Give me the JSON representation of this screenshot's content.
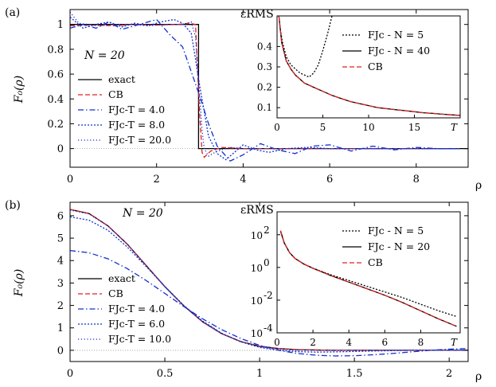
{
  "chart_data": [
    {
      "type": "line",
      "panel_label": "(a)",
      "xlabel": "ρ",
      "ylabel": "F₀(ρ)",
      "xlim": [
        0,
        9.2
      ],
      "ylim": [
        -0.15,
        1.12
      ],
      "xticks": [
        "0",
        "2",
        "4",
        "6",
        "8"
      ],
      "yticks": [
        "0",
        "0.2",
        "0.4",
        "0.6",
        "0.8",
        "1"
      ],
      "annotation": "N = 20",
      "legend_position": "center-left",
      "series": [
        {
          "name": "exact",
          "color": "#000000",
          "dash": "solid",
          "x": [
            0,
            2.97,
            2.97,
            3.0,
            9.2
          ],
          "y": [
            1,
            1,
            0,
            0,
            0
          ]
        },
        {
          "name": "CB",
          "color": "#e02020",
          "dash": "dashed",
          "x": [
            0,
            0.5,
            1.0,
            1.5,
            2.0,
            2.5,
            2.75,
            2.9,
            2.95,
            3.0,
            3.05,
            3.1,
            3.25,
            3.5,
            4.0,
            5.0,
            6.0,
            7.0,
            8.0,
            9.0
          ],
          "y": [
            0.99,
            0.995,
            0.99,
            1.0,
            0.995,
            1.0,
            1.01,
            1.0,
            0.6,
            0.25,
            -0.03,
            -0.07,
            -0.02,
            0.01,
            0.0,
            0.0,
            0.0,
            0.0,
            0.0,
            0.0
          ]
        },
        {
          "name": "FJc-T = 4.0",
          "color": "#1030d0",
          "dash": "dashdot",
          "x": [
            0,
            0.3,
            0.6,
            0.9,
            1.2,
            1.6,
            2.0,
            2.3,
            2.6,
            2.8,
            3.0,
            3.2,
            3.4,
            3.7,
            4.0,
            4.4,
            4.8,
            5.2,
            5.6,
            6.0,
            6.5,
            7.0,
            7.5,
            8.0,
            8.5,
            9.0
          ],
          "y": [
            0.97,
            1.0,
            0.97,
            1.02,
            0.96,
            1.0,
            1.04,
            0.92,
            0.82,
            0.62,
            0.42,
            0.2,
            0.02,
            -0.1,
            -0.05,
            0.04,
            -0.01,
            -0.04,
            0.02,
            0.03,
            -0.02,
            0.02,
            -0.01,
            0.01,
            0.0,
            0.0
          ]
        },
        {
          "name": "FJc-T = 8.0",
          "color": "#1030d0",
          "dash": "dotted",
          "x": [
            0,
            0.3,
            0.6,
            0.9,
            1.2,
            1.5,
            1.8,
            2.1,
            2.4,
            2.6,
            2.8,
            2.9,
            3.0,
            3.1,
            3.2,
            3.4,
            3.6,
            3.8,
            4.0,
            4.3,
            4.6,
            5.0,
            5.5,
            6.0,
            6.5,
            7.0,
            7.5,
            8.0,
            9.0
          ],
          "y": [
            1.06,
            0.97,
            1.0,
            1.02,
            0.98,
            1.01,
            0.99,
            1.02,
            1.04,
            1.01,
            0.93,
            0.72,
            0.5,
            0.3,
            0.1,
            -0.04,
            -0.09,
            -0.03,
            0.03,
            -0.01,
            -0.03,
            0.0,
            0.01,
            0.0,
            0.0,
            0.0,
            0.0,
            0.0,
            0.0
          ]
        },
        {
          "name": "FJc-T = 20.0",
          "color": "#1030d0",
          "dash": "dotted-sparse",
          "x": [
            0,
            0.2,
            0.4,
            0.7,
            1.0,
            1.4,
            1.8,
            2.2,
            2.6,
            2.8,
            2.9,
            2.95,
            3.0,
            3.05,
            3.1,
            3.2,
            3.4,
            3.7,
            4.0,
            5.0,
            6.0,
            7.0,
            8.0,
            9.0
          ],
          "y": [
            1.1,
            1.01,
            1.0,
            0.99,
            1.0,
            1.0,
            0.99,
            1.0,
            1.0,
            1.02,
            0.9,
            0.65,
            0.4,
            0.15,
            0.0,
            -0.06,
            -0.02,
            0.01,
            0.0,
            0.0,
            0.0,
            0.0,
            0.0,
            0.0
          ]
        }
      ],
      "inset": {
        "ylabel": "εRMS",
        "xlabel": "T",
        "xlim": [
          0,
          20
        ],
        "ylim": [
          0.05,
          0.55
        ],
        "xticks": [
          "0",
          "5",
          "10",
          "15"
        ],
        "yticks": [
          "0.1",
          "0.2",
          "0.3",
          "0.4"
        ],
        "legend_position": "top-right",
        "series": [
          {
            "name": "FJc - N = 5",
            "color": "#000000",
            "dash": "dotted",
            "x": [
              0.3,
              0.6,
              1.0,
              1.5,
              2.0,
              2.5,
              3.0,
              3.5,
              4.0,
              4.5,
              5.0,
              5.5,
              6.0
            ],
            "y": [
              0.5,
              0.42,
              0.35,
              0.31,
              0.29,
              0.27,
              0.26,
              0.25,
              0.27,
              0.31,
              0.38,
              0.46,
              0.55
            ]
          },
          {
            "name": "FJc - N = 40",
            "color": "#000000",
            "dash": "solid",
            "x": [
              0.2,
              0.5,
              1.0,
              1.5,
              2.0,
              2.5,
              3.0,
              3.5,
              4.0,
              5.0,
              6.0,
              7.0,
              8.0,
              9.0,
              10.0,
              11.0,
              12.0,
              13.0,
              14.0,
              15.0,
              16.0,
              17.0,
              18.0,
              19.0,
              20.0
            ],
            "y": [
              0.55,
              0.42,
              0.33,
              0.29,
              0.26,
              0.24,
              0.22,
              0.21,
              0.2,
              0.18,
              0.16,
              0.145,
              0.13,
              0.12,
              0.11,
              0.1,
              0.095,
              0.09,
              0.085,
              0.08,
              0.075,
              0.072,
              0.068,
              0.065,
              0.062
            ]
          },
          {
            "name": "CB",
            "color": "#e02020",
            "dash": "dashed",
            "x": [
              0.2,
              0.5,
              1.0,
              1.5,
              2.0,
              2.5,
              3.0,
              3.5,
              4.0,
              5.0,
              6.0,
              7.0,
              8.0,
              9.0,
              10.0,
              11.0,
              12.0,
              13.0,
              14.0,
              15.0,
              16.0,
              17.0,
              18.0,
              19.0,
              20.0
            ],
            "y": [
              0.55,
              0.42,
              0.33,
              0.29,
              0.26,
              0.24,
              0.22,
              0.21,
              0.2,
              0.18,
              0.16,
              0.145,
              0.13,
              0.12,
              0.11,
              0.1,
              0.095,
              0.09,
              0.085,
              0.08,
              0.075,
              0.072,
              0.068,
              0.065,
              0.062
            ]
          }
        ]
      }
    },
    {
      "type": "line",
      "panel_label": "(b)",
      "xlabel": "ρ",
      "ylabel": "F₀(ρ)",
      "xlim": [
        0,
        2.1
      ],
      "ylim": [
        -0.5,
        6.6
      ],
      "xticks": [
        "0",
        "0.5",
        "1",
        "1.5",
        "2"
      ],
      "yticks": [
        "0",
        "1",
        "2",
        "3",
        "4",
        "5",
        "6"
      ],
      "annotation": "N = 20",
      "legend_position": "lower-left",
      "series": [
        {
          "name": "exact",
          "color": "#000000",
          "dash": "solid",
          "x": [
            0,
            0.1,
            0.2,
            0.3,
            0.4,
            0.5,
            0.6,
            0.7,
            0.8,
            0.9,
            1.0,
            1.1,
            1.2,
            1.4,
            1.6,
            1.8,
            2.0,
            2.1
          ],
          "y": [
            6.28,
            6.1,
            5.55,
            4.75,
            3.8,
            2.84,
            1.98,
            1.26,
            0.74,
            0.39,
            0.18,
            0.08,
            0.03,
            0.0,
            0.0,
            0.0,
            0.0,
            0.0
          ]
        },
        {
          "name": "CB",
          "color": "#e02020",
          "dash": "dashed",
          "x": [
            0,
            0.1,
            0.2,
            0.3,
            0.4,
            0.5,
            0.6,
            0.7,
            0.8,
            0.9,
            1.0,
            1.1,
            1.2,
            1.4,
            1.6,
            1.8,
            2.0,
            2.1
          ],
          "y": [
            6.28,
            6.1,
            5.55,
            4.75,
            3.8,
            2.84,
            1.98,
            1.26,
            0.74,
            0.39,
            0.18,
            0.08,
            0.03,
            0.0,
            0.0,
            0.0,
            0.0,
            0.0
          ]
        },
        {
          "name": "FJc-T = 4.0",
          "color": "#1030d0",
          "dash": "dashdot",
          "x": [
            0,
            0.1,
            0.2,
            0.3,
            0.4,
            0.5,
            0.6,
            0.7,
            0.8,
            0.9,
            1.0,
            1.1,
            1.2,
            1.3,
            1.4,
            1.5,
            1.6,
            1.7,
            1.8,
            1.9,
            2.0,
            2.1
          ],
          "y": [
            4.45,
            4.35,
            4.08,
            3.65,
            3.12,
            2.54,
            1.95,
            1.4,
            0.92,
            0.53,
            0.22,
            0.0,
            -0.14,
            -0.22,
            -0.25,
            -0.24,
            -0.2,
            -0.14,
            -0.07,
            0.0,
            0.05,
            0.08
          ]
        },
        {
          "name": "FJc-T = 6.0",
          "color": "#1030d0",
          "dash": "dotted",
          "x": [
            0,
            0.1,
            0.2,
            0.3,
            0.4,
            0.5,
            0.6,
            0.7,
            0.8,
            0.9,
            1.0,
            1.1,
            1.2,
            1.3,
            1.4,
            1.6,
            1.8,
            2.0,
            2.1
          ],
          "y": [
            5.95,
            5.8,
            5.35,
            4.62,
            3.75,
            2.85,
            2.0,
            1.3,
            0.76,
            0.38,
            0.13,
            0.0,
            -0.06,
            -0.08,
            -0.07,
            -0.03,
            0.0,
            0.01,
            0.01
          ]
        },
        {
          "name": "FJc-T = 10.0",
          "color": "#1030d0",
          "dash": "dotted-sparse",
          "x": [
            0,
            0.1,
            0.2,
            0.3,
            0.4,
            0.5,
            0.6,
            0.7,
            0.8,
            0.9,
            1.0,
            1.1,
            1.2,
            1.4,
            1.6,
            1.8,
            2.0,
            2.1
          ],
          "y": [
            6.25,
            6.08,
            5.54,
            4.74,
            3.79,
            2.84,
            1.98,
            1.27,
            0.74,
            0.38,
            0.16,
            0.05,
            0.0,
            -0.01,
            0.0,
            0.0,
            0.0,
            0.0
          ]
        }
      ],
      "inset": {
        "ylabel": "εRMS",
        "xlabel": "T",
        "xlim": [
          0,
          10.2
        ],
        "ylim_log10": [
          -4,
          3.4
        ],
        "xticks": [
          "0",
          "2",
          "4",
          "6",
          "8"
        ],
        "yticks": [
          "10",
          "10",
          "10",
          "10"
        ],
        "ytick_exponents": [
          "-4",
          "-2",
          "0",
          "2"
        ],
        "legend_position": "top-right",
        "series": [
          {
            "name": "FJc - N = 5",
            "color": "#000000",
            "dash": "dotted",
            "x": [
              0.2,
              0.4,
              0.7,
              1.0,
              1.5,
              2.0,
              3.0,
              4.0,
              5.0,
              6.0,
              7.0,
              8.0,
              9.0,
              10.0
            ],
            "y_log10": [
              2.2,
              1.5,
              0.9,
              0.55,
              0.2,
              -0.05,
              -0.45,
              -0.8,
              -1.15,
              -1.5,
              -1.85,
              -2.25,
              -2.65,
              -3.0
            ]
          },
          {
            "name": "FJc - N = 20",
            "color": "#000000",
            "dash": "solid",
            "x": [
              0.2,
              0.4,
              0.7,
              1.0,
              1.5,
              2.0,
              3.0,
              4.0,
              5.0,
              6.0,
              7.0,
              8.0,
              9.0,
              10.0
            ],
            "y_log10": [
              2.2,
              1.5,
              0.9,
              0.55,
              0.2,
              -0.05,
              -0.5,
              -0.9,
              -1.3,
              -1.7,
              -2.15,
              -2.65,
              -3.15,
              -3.6
            ]
          },
          {
            "name": "CB",
            "color": "#e02020",
            "dash": "dashed",
            "x": [
              0.2,
              0.4,
              0.7,
              1.0,
              1.5,
              2.0,
              3.0,
              4.0,
              5.0,
              6.0,
              7.0,
              8.0,
              9.0,
              10.0
            ],
            "y_log10": [
              2.25,
              1.5,
              0.9,
              0.55,
              0.2,
              -0.05,
              -0.5,
              -0.9,
              -1.3,
              -1.7,
              -2.15,
              -2.65,
              -3.15,
              -3.6
            ]
          }
        ]
      }
    }
  ]
}
